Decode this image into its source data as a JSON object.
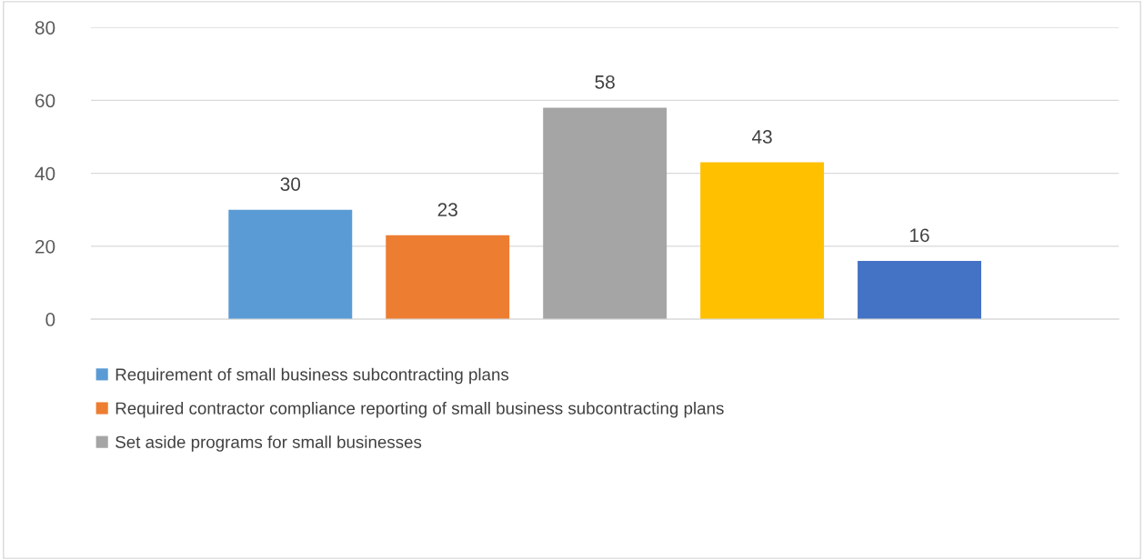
{
  "chart_data": {
    "type": "bar",
    "categories": [
      null
    ],
    "series": [
      {
        "name": "Requirement of small business subcontracting plans",
        "color": "#5b9bd5",
        "values": [
          30
        ]
      },
      {
        "name": "Required contractor compliance reporting of small business subcontracting plans",
        "color": "#ed7d31",
        "values": [
          23
        ]
      },
      {
        "name": "Set aside programs for small businesses",
        "color": "#a5a5a5",
        "values": [
          58
        ]
      },
      {
        "color": "#ffc000",
        "values": [
          43
        ]
      },
      {
        "color": "#4472c4",
        "values": [
          16
        ]
      }
    ],
    "ylim": [
      0,
      80
    ],
    "yticks": [
      0,
      20,
      40,
      60,
      80
    ],
    "grid": "y",
    "legend": "bottom",
    "data_labels": true
  }
}
